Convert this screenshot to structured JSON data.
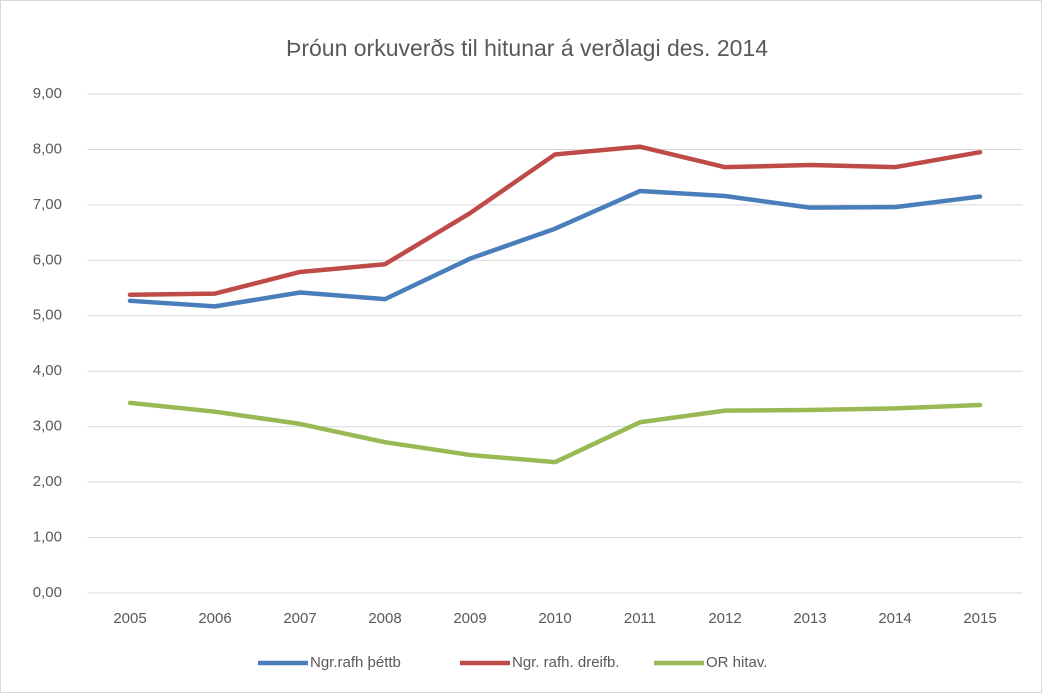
{
  "chart_data": {
    "type": "line",
    "title": "Þróun orkuverðs til hitunar á verðlagi des. 2014",
    "categories": [
      "2005",
      "2006",
      "2007",
      "2008",
      "2009",
      "2010",
      "2011",
      "2012",
      "2013",
      "2014",
      "2015"
    ],
    "series": [
      {
        "name": "Ngr.rafh þéttb",
        "color": "#4a7ebb",
        "values": [
          5.27,
          5.17,
          5.42,
          5.3,
          6.03,
          6.57,
          7.25,
          7.16,
          6.95,
          6.96,
          7.15
        ]
      },
      {
        "name": "Ngr. rafh. dreifb.",
        "color": "#be4b48",
        "values": [
          5.38,
          5.4,
          5.79,
          5.93,
          6.85,
          7.91,
          8.05,
          7.68,
          7.72,
          7.68,
          7.95
        ]
      },
      {
        "name": "OR hitav.",
        "color": "#98b954",
        "values": [
          3.43,
          3.27,
          3.05,
          2.72,
          2.49,
          2.36,
          3.08,
          3.29,
          3.3,
          3.33,
          3.39
        ]
      }
    ],
    "ylim": [
      0,
      9
    ],
    "yticks": [
      {
        "value": 0,
        "label": "0,00"
      },
      {
        "value": 1,
        "label": "1,00"
      },
      {
        "value": 2,
        "label": "2,00"
      },
      {
        "value": 3,
        "label": "3,00"
      },
      {
        "value": 4,
        "label": "4,00"
      },
      {
        "value": 5,
        "label": "5,00"
      },
      {
        "value": 6,
        "label": "6,00"
      },
      {
        "value": 7,
        "label": "7,00"
      },
      {
        "value": 8,
        "label": "8,00"
      },
      {
        "value": 9,
        "label": "9,00"
      }
    ],
    "grid": true,
    "legend": "bottom"
  }
}
